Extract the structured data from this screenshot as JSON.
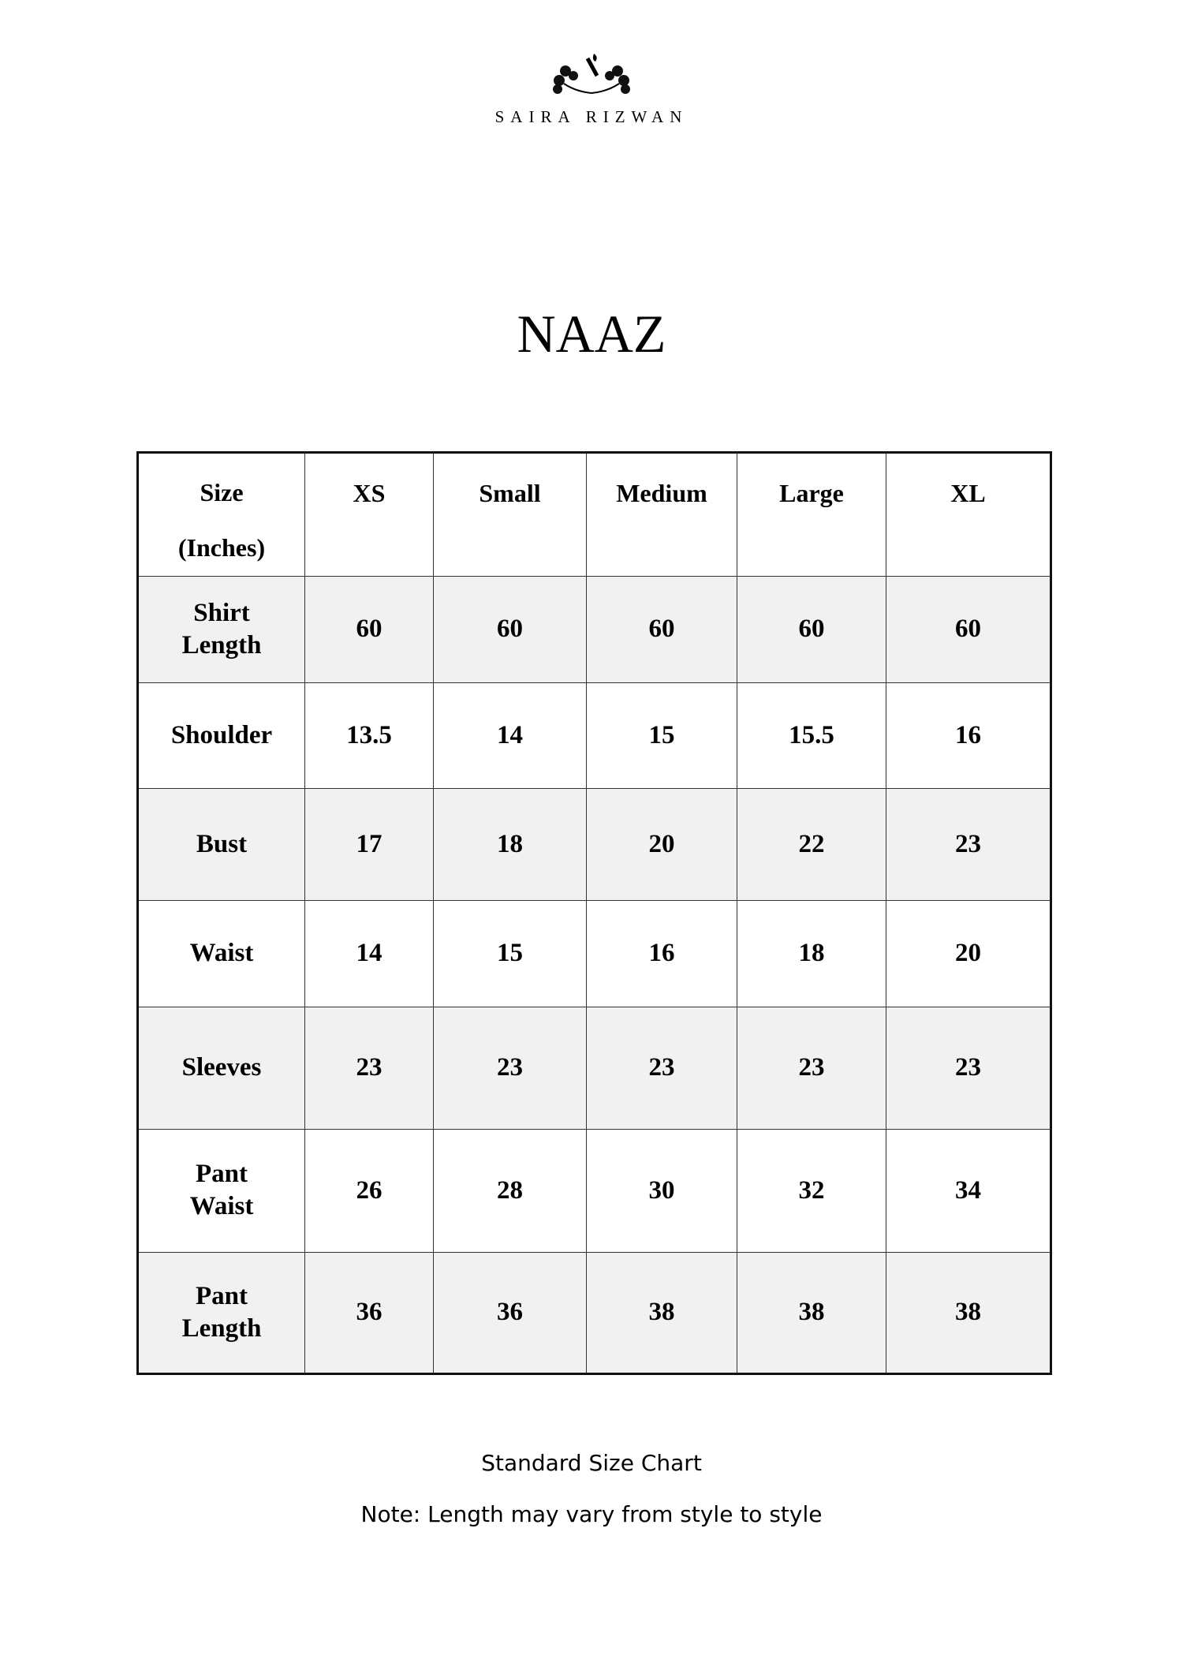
{
  "brand": {
    "name": "SAIRA RIZWAN",
    "logo_icon": "floral-monogram-logo"
  },
  "title": "NAAZ",
  "table": {
    "header_label": [
      "Size",
      "(Inches)"
    ],
    "columns": [
      "XS",
      "Small",
      "Medium",
      "Large",
      "XL"
    ],
    "rows": [
      {
        "label": [
          "Shirt",
          "Length"
        ],
        "values": [
          "60",
          "60",
          "60",
          "60",
          "60"
        ]
      },
      {
        "label": [
          "Shoulder"
        ],
        "values": [
          "13.5",
          "14",
          "15",
          "15.5",
          "16"
        ]
      },
      {
        "label": [
          "Bust"
        ],
        "values": [
          "17",
          "18",
          "20",
          "22",
          "23"
        ]
      },
      {
        "label": [
          "Waist"
        ],
        "values": [
          "14",
          "15",
          "16",
          "18",
          "20"
        ]
      },
      {
        "label": [
          "Sleeves"
        ],
        "values": [
          "23",
          "23",
          "23",
          "23",
          "23"
        ]
      },
      {
        "label": [
          "Pant",
          "Waist"
        ],
        "values": [
          "26",
          "28",
          "30",
          "32",
          "34"
        ]
      },
      {
        "label": [
          "Pant",
          "Length"
        ],
        "values": [
          "36",
          "36",
          "38",
          "38",
          "38"
        ]
      }
    ]
  },
  "footer": {
    "caption": "Standard Size Chart",
    "note": "Note: Length may vary from style to style"
  }
}
